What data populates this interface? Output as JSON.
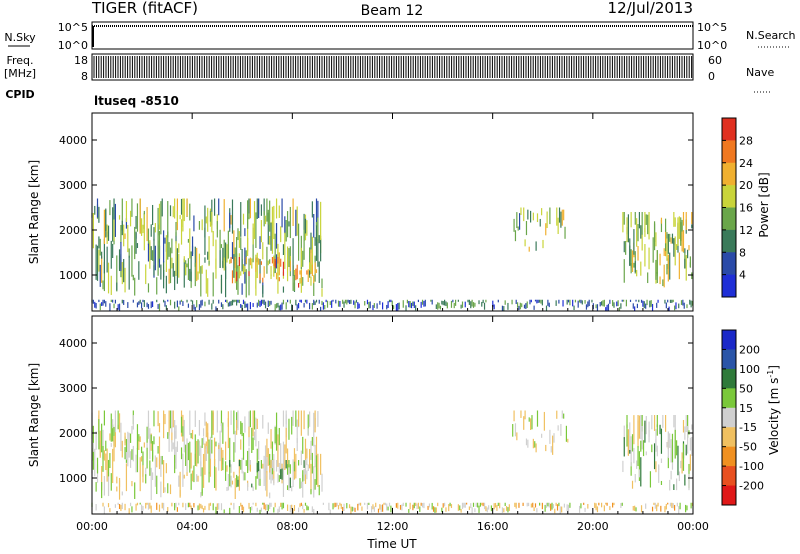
{
  "header": {
    "station": "TIGER (fitACF)",
    "beam": "Beam 12",
    "date": "12/Jul/2013"
  },
  "status_panels": {
    "nsky": {
      "label": "N.Sky",
      "ticks": [
        "10^5",
        "10^0"
      ],
      "right_label": "N.Search"
    },
    "freq": {
      "label_line1": "Freq.",
      "label_line2": "[MHz]",
      "ticks_left": [
        "18",
        "8"
      ],
      "ticks_right": [
        "60",
        "0"
      ],
      "right_label": "Nave"
    },
    "cpid": {
      "label": "CPID",
      "value": "ltuseq -8510"
    }
  },
  "colors": {
    "power_scale": [
      "#1f2fd6",
      "#2a4aa8",
      "#3a7a5a",
      "#6aa64a",
      "#c9d43a",
      "#f0b030",
      "#f07820",
      "#e03020"
    ],
    "velocity_scale": [
      "#1a28c8",
      "#2a55a8",
      "#2f7a3a",
      "#7ac83a",
      "#d0d0d0",
      "#f0c060",
      "#f09020",
      "#e85020",
      "#e01818"
    ]
  },
  "chart_data": [
    {
      "type": "heatmap",
      "title": "",
      "xlabel": "",
      "ylabel": "Slant Range [km]",
      "x_range_hours": [
        0,
        24
      ],
      "ylim": [
        200,
        4600
      ],
      "yticks": [
        1000,
        2000,
        3000,
        4000
      ],
      "xticks": [
        "00:00",
        "04:00",
        "08:00",
        "12:00",
        "16:00",
        "20:00",
        "00:00"
      ],
      "colorbar": {
        "label": "Power [dB]",
        "ticks": [
          4,
          8,
          12,
          16,
          20,
          24,
          28
        ],
        "range": [
          0,
          32
        ]
      },
      "echo_regions": [
        {
          "t_start": 0.0,
          "t_end": 9.2,
          "range_low": 500,
          "range_high": 2700,
          "typical_value": 14
        },
        {
          "t_start": 5.5,
          "t_end": 9.0,
          "range_low": 700,
          "range_high": 1400,
          "typical_value": 24
        },
        {
          "t_start": 16.8,
          "t_end": 19.0,
          "range_low": 1500,
          "range_high": 2500,
          "typical_value": 14
        },
        {
          "t_start": 21.2,
          "t_end": 24.0,
          "range_low": 700,
          "range_high": 2400,
          "typical_value": 16
        },
        {
          "t_start": 0.0,
          "t_end": 24.0,
          "range_low": 200,
          "range_high": 450,
          "typical_value": 8
        }
      ]
    },
    {
      "type": "heatmap",
      "title": "",
      "xlabel": "Time UT",
      "ylabel": "Slant Range [km]",
      "x_range_hours": [
        0,
        24
      ],
      "ylim": [
        200,
        4600
      ],
      "yticks": [
        1000,
        2000,
        3000,
        4000
      ],
      "xticks": [
        "00:00",
        "04:00",
        "08:00",
        "12:00",
        "16:00",
        "20:00",
        "00:00"
      ],
      "colorbar": {
        "label": "Velocity [m s^-1]",
        "ticks": [
          200,
          100,
          50,
          15,
          -15,
          -50,
          -100,
          -200
        ],
        "range": [
          -250,
          250
        ]
      },
      "echo_regions": [
        {
          "t_start": 0.0,
          "t_end": 9.2,
          "range_low": 500,
          "range_high": 2500,
          "typical_value": 0
        },
        {
          "t_start": 5.5,
          "t_end": 9.0,
          "range_low": 700,
          "range_high": 1400,
          "typical_value": 40
        },
        {
          "t_start": 16.8,
          "t_end": 19.0,
          "range_low": 1500,
          "range_high": 2500,
          "typical_value": 0
        },
        {
          "t_start": 21.2,
          "t_end": 24.0,
          "range_low": 700,
          "range_high": 2400,
          "typical_value": 20
        },
        {
          "t_start": 0.0,
          "t_end": 24.0,
          "range_low": 200,
          "range_high": 450,
          "typical_value": -20
        }
      ]
    }
  ]
}
